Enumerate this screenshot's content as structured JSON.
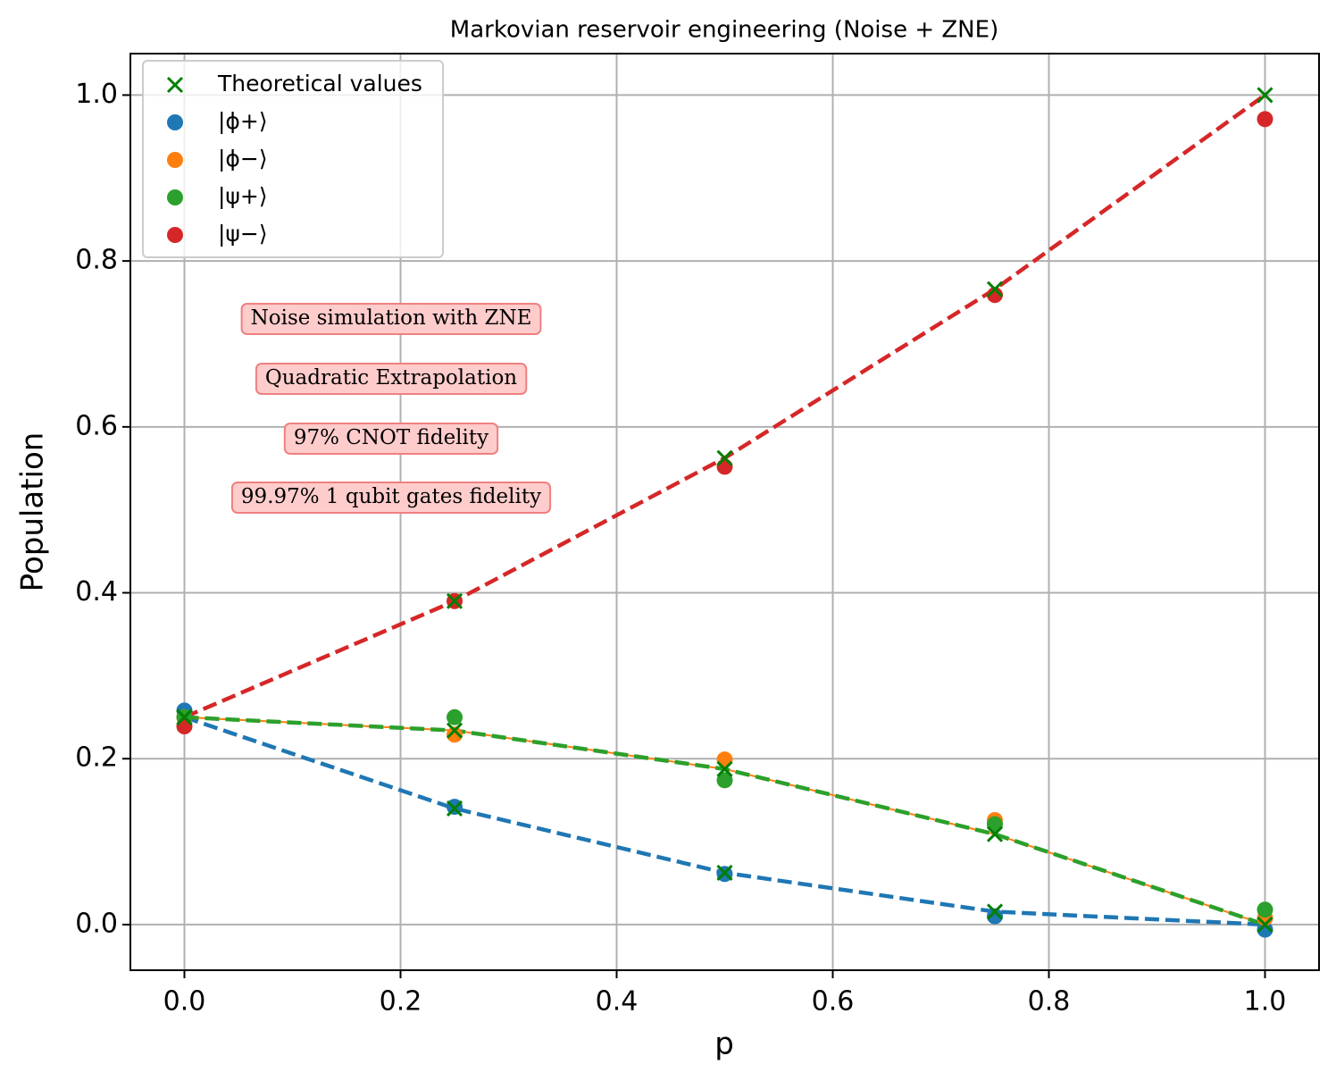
{
  "chart_data": {
    "type": "scatter",
    "title": "Markovian reservoir engineering (Noise + ZNE)",
    "xlabel": "p",
    "ylabel": "Population",
    "xlim": [
      -0.05,
      1.05
    ],
    "ylim": [
      -0.055,
      1.05
    ],
    "xticks": [
      {
        "value": 0,
        "label": "0.0"
      },
      0.2,
      0.4,
      0.6,
      0.8,
      {
        "value": 1,
        "label": "1.0"
      }
    ],
    "yticks": [
      {
        "value": 0,
        "label": "0.0"
      },
      0.2,
      0.4,
      0.6,
      0.8,
      {
        "value": 1,
        "label": "1.0"
      }
    ],
    "grid": true,
    "legend": "upper left",
    "annotations": [
      "Noise simulation with ZNE",
      "Quadratic Extrapolation",
      "97% CNOT fidelity",
      "99.97% 1 qubit gates fidelity"
    ],
    "lines": [
      {
        "color": "#ff7f0e",
        "style": "solid",
        "x": [
          0,
          0.25,
          0.5,
          0.75,
          1
        ],
        "values": [
          0.25,
          0.234,
          0.1875,
          0.109,
          0
        ]
      },
      {
        "color": "#1f77b4",
        "style": "dashed",
        "x": [
          0,
          0.25,
          0.5,
          0.75,
          1
        ],
        "values": [
          0.25,
          0.14,
          0.0625,
          0.0156,
          0
        ]
      },
      {
        "color": "#2ca02c",
        "style": "dashed",
        "x": [
          0,
          0.25,
          0.5,
          0.75,
          1
        ],
        "values": [
          0.25,
          0.234,
          0.1875,
          0.109,
          0
        ]
      },
      {
        "color": "#d62728",
        "style": "dashed",
        "x": [
          0,
          0.25,
          0.5,
          0.75,
          1
        ],
        "values": [
          0.25,
          0.39,
          0.5625,
          0.766,
          1
        ]
      }
    ],
    "series": [
      {
        "name": "Theoretical values",
        "color": "#008000",
        "marker": "x",
        "x": [
          0,
          0.25,
          0.5,
          0.75,
          1,
          0,
          0.25,
          0.5,
          0.75,
          1,
          0,
          0.25,
          0.5,
          0.75,
          1
        ],
        "values": [
          0.25,
          0.39,
          0.5625,
          0.766,
          1,
          0.25,
          0.14,
          0.0625,
          0.0156,
          0,
          0.25,
          0.234,
          0.1875,
          0.109,
          0
        ]
      },
      {
        "name": "|ϕ+⟩",
        "color": "#1f77b4",
        "marker": "o",
        "x": [
          0,
          0.25,
          0.5,
          0.75,
          1
        ],
        "values": [
          0.258,
          0.142,
          0.061,
          0.01,
          -0.006
        ]
      },
      {
        "name": "|ϕ−⟩",
        "color": "#ff7f0e",
        "marker": "o",
        "x": [
          0,
          0.25,
          0.5,
          0.75,
          1
        ],
        "values": [
          0.25,
          0.229,
          0.199,
          0.126,
          0.008
        ]
      },
      {
        "name": "|ψ+⟩",
        "color": "#2ca02c",
        "marker": "o",
        "x": [
          0,
          0.25,
          0.5,
          0.75,
          1
        ],
        "values": [
          0.25,
          0.25,
          0.174,
          0.121,
          0.018
        ]
      },
      {
        "name": "|ψ−⟩",
        "color": "#d62728",
        "marker": "o",
        "x": [
          0,
          0.25,
          0.5,
          0.75,
          1
        ],
        "values": [
          0.239,
          0.39,
          0.552,
          0.759,
          0.971
        ]
      }
    ]
  }
}
